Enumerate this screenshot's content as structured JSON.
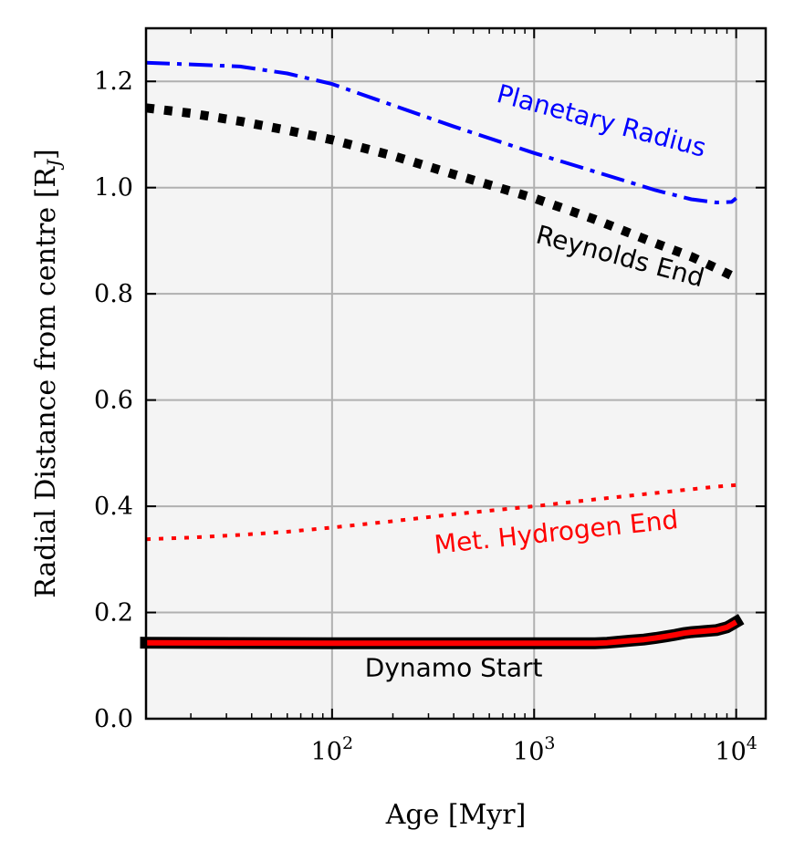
{
  "chart_data": {
    "type": "line",
    "xscale": "log",
    "xlabel": "Age [Myr]",
    "ylabel": "Radial Distance from centre [R",
    "ylabel_sub": "J",
    "ylabel_close": "]",
    "xlim": [
      12,
      14000
    ],
    "ylim": [
      0,
      1.3
    ],
    "grid": true,
    "xticks": [
      100,
      1000,
      10000
    ],
    "xtick_labels": [
      {
        "base": "10",
        "exp": "2"
      },
      {
        "base": "10",
        "exp": "3"
      },
      {
        "base": "10",
        "exp": "4"
      }
    ],
    "yticks": [
      0.0,
      0.2,
      0.4,
      0.6,
      0.8,
      1.0,
      1.2
    ],
    "ytick_labels": [
      "0.0",
      "0.2",
      "0.4",
      "0.6",
      "0.8",
      "1.0",
      "1.2"
    ],
    "colors": {
      "background": "#f4f4f4",
      "planetary_radius": "#0000ff",
      "reynolds_end": "#000000",
      "met_hydrogen_end": "#ff0000",
      "dynamo_start": "#ff0000",
      "dynamo_edge": "#000000",
      "grid": "#b0b0b0"
    },
    "series": [
      {
        "name": "Planetary Radius",
        "style": "dashdot",
        "x": [
          12,
          20,
          35,
          60,
          100,
          200,
          400,
          1000,
          2000,
          4000,
          6000,
          8000,
          9500,
          10000
        ],
        "y": [
          1.235,
          1.232,
          1.228,
          1.215,
          1.195,
          1.155,
          1.115,
          1.065,
          1.03,
          0.995,
          0.978,
          0.972,
          0.973,
          0.98
        ]
      },
      {
        "name": "Reynolds End",
        "style": "dotted-thick",
        "x": [
          12,
          20,
          35,
          60,
          100,
          200,
          400,
          1000,
          2000,
          4000,
          6000,
          8000,
          10000
        ],
        "y": [
          1.15,
          1.14,
          1.125,
          1.108,
          1.09,
          1.06,
          1.025,
          0.98,
          0.94,
          0.895,
          0.87,
          0.848,
          0.83
        ]
      },
      {
        "name": "Met. Hydrogen End",
        "style": "dotted",
        "x": [
          12,
          20,
          35,
          60,
          100,
          200,
          400,
          1000,
          2000,
          4000,
          6000,
          8000,
          10000
        ],
        "y": [
          0.338,
          0.341,
          0.346,
          0.352,
          0.36,
          0.372,
          0.385,
          0.4,
          0.413,
          0.425,
          0.432,
          0.437,
          0.44
        ]
      },
      {
        "name": "Dynamo Start",
        "style": "thick-step",
        "x": [
          12,
          100,
          1000,
          2000,
          2300,
          2600,
          3000,
          3500,
          4000,
          4500,
          5000,
          5500,
          6000,
          7000,
          8000,
          9000,
          9500,
          10000
        ],
        "y": [
          0.143,
          0.142,
          0.142,
          0.142,
          0.143,
          0.145,
          0.147,
          0.149,
          0.152,
          0.155,
          0.158,
          0.161,
          0.163,
          0.165,
          0.167,
          0.172,
          0.177,
          0.182
        ]
      }
    ],
    "annotations": [
      {
        "text": "Planetary Radius",
        "color": "#0000ff",
        "x": 2100,
        "y": 1.11,
        "angle": 15
      },
      {
        "text": "Reynolds End",
        "color": "#000000",
        "x": 2600,
        "y": 0.855,
        "angle": 15
      },
      {
        "text": "Met. Hydrogen End",
        "color": "#ff0000",
        "x": 1300,
        "y": 0.335,
        "angle": -6
      },
      {
        "text": "Dynamo Start",
        "color": "#000000",
        "x": 400,
        "y": 0.08,
        "angle": 0
      }
    ]
  }
}
